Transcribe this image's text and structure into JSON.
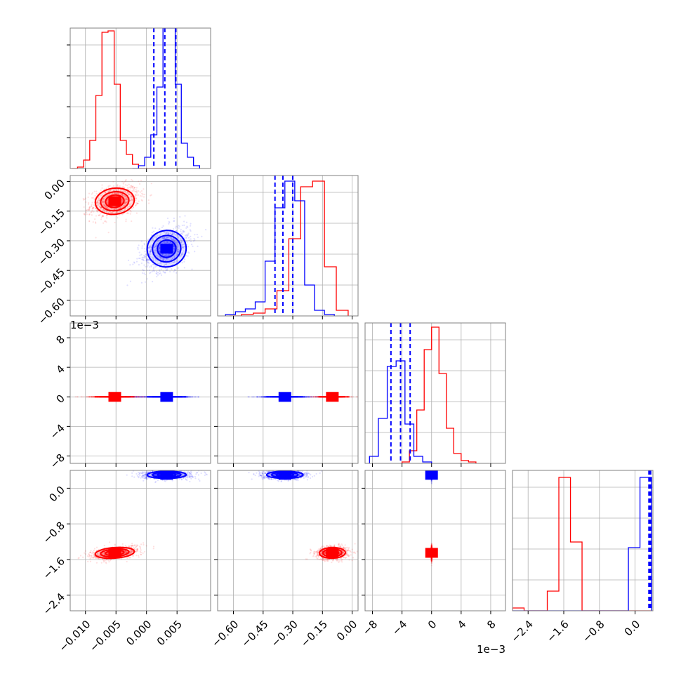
{
  "colors": {
    "red": "#ff0000",
    "blue": "#0000ff",
    "grid": "#b0b0b0",
    "axis": "#000000"
  },
  "chart_data": {
    "type": "corner-plot",
    "title": "",
    "variables": [
      {
        "range": [
          -0.0125,
          0.0105
        ],
        "ticks": [
          -0.01,
          -0.005,
          0.0,
          0.005
        ],
        "tick_labels": [
          "−0.010",
          "−0.005",
          "0.000",
          "0.005"
        ],
        "offset_label": ""
      },
      {
        "range": [
          -0.68,
          0.03
        ],
        "ticks": [
          0.0,
          -0.15,
          -0.3,
          -0.45,
          -0.6
        ],
        "tick_labels": [
          "0.00",
          "−0.15",
          "−0.30",
          "−0.45",
          "−0.60"
        ],
        "offset_label": ""
      },
      {
        "range": [
          -9,
          10
        ],
        "ticks": [
          8,
          4,
          0,
          -4,
          -8
        ],
        "tick_labels": [
          "8",
          "4",
          "0",
          "−4",
          "−8"
        ],
        "offset_label": "1e−3"
      },
      {
        "range": [
          -2.75,
          0.4
        ],
        "ticks": [
          0.0,
          -0.8,
          -1.6,
          -2.4
        ],
        "tick_labels": [
          "0.0",
          "−0.8",
          "−1.6",
          "−2.4"
        ],
        "offset_label": ""
      }
    ],
    "x_offset_labels": [
      "",
      "",
      "1e−3",
      ""
    ],
    "y_offset_labels": [
      "",
      "1e−3",
      "",
      ""
    ],
    "series": [
      {
        "color": "red",
        "means": [
          -0.0052,
          -0.1,
          0.0031,
          -1.45
        ],
        "stds": [
          0.0016,
          0.033,
          0.0012,
          0.06
        ],
        "ellipse_corr": {
          "1_0": 0.3,
          "2_0": -0.35,
          "2_1": -0.1,
          "3_0": 0.45,
          "3_1": 0.1,
          "3_2": 0.05
        },
        "hist": [
          [
            0,
            0.01,
            0.06,
            0.2,
            0.52,
            0.97,
            0.98,
            0.6,
            0.2,
            0.1,
            0.03,
            0.0,
            0.0,
            0,
            0
          ],
          [
            0,
            0.01,
            0.02,
            0.05,
            0.18,
            0.55,
            0.92,
            0.96,
            0.35,
            0.04
          ],
          [
            0.01,
            0.09,
            0.38,
            0.81,
            0.97,
            0.64,
            0.25,
            0.07,
            0.02,
            0.01
          ],
          [
            0.02,
            0.0,
            0.0,
            0.14,
            0.95,
            0.49,
            0.0,
            0.0,
            0.0,
            0.0,
            0.0,
            0.0
          ]
        ],
        "hist_edges": [
          [
            -0.0123,
            -0.0113,
            -0.0103,
            -0.0093,
            -0.0083,
            -0.0073,
            -0.0063,
            -0.0053,
            -0.0043,
            -0.0033,
            -0.0023,
            -0.0013,
            -0.0003,
            0.0007,
            0.0017,
            0.0027
          ],
          [
            -0.62,
            -0.56,
            -0.5,
            -0.44,
            -0.38,
            -0.32,
            -0.26,
            -0.2,
            -0.14,
            -0.08,
            -0.02
          ],
          [
            -4.0,
            -3.0,
            -2.0,
            -1.0,
            0.0,
            1.0,
            2.0,
            3.0,
            4.0,
            5.0,
            6.0
          ],
          [
            -2.75,
            -2.49,
            -2.23,
            -1.97,
            -1.71,
            -1.45,
            -1.19,
            -0.93,
            -0.67,
            -0.41,
            -0.15,
            0.11,
            0.37
          ]
        ]
      },
      {
        "color": "blue",
        "means": [
          0.0033,
          -0.34,
          -0.0042,
          0.3
        ],
        "stds": [
          0.0016,
          0.046,
          0.0014,
          0.04
        ],
        "ellipse_corr": {
          "1_0": 0.4,
          "2_0": 0.0,
          "2_1": 0.05,
          "3_0": 0.05,
          "3_1": 0.0,
          "3_2": 0.0
        },
        "hist": [
          [
            0,
            0.02,
            0.08,
            0.24,
            0.58,
            1.0,
            1.0,
            0.6,
            0.18,
            0.08,
            0.02
          ],
          [
            0.01,
            0.03,
            0.05,
            0.1,
            0.39,
            0.77,
            0.96,
            0.82,
            0.22,
            0.04,
            0.01
          ],
          [
            0.05,
            0.32,
            0.69,
            0.73,
            0.28,
            0.05,
            0.01
          ],
          [
            0.0,
            0.0,
            0.0,
            0.0,
            0.0,
            0.0,
            0.0,
            0.0,
            0.0,
            0.0,
            0.45,
            0.95
          ]
        ],
        "hist_edges": [
          [
            -0.0023,
            -0.0013,
            -0.0003,
            0.0007,
            0.0017,
            0.0027,
            0.0037,
            0.0047,
            0.0057,
            0.0067,
            0.0077,
            0.0087
          ],
          [
            -0.64,
            -0.59,
            -0.54,
            -0.49,
            -0.44,
            -0.39,
            -0.34,
            -0.29,
            -0.24,
            -0.19,
            -0.14,
            -0.09
          ],
          [
            -8.4,
            -7.2,
            -6.0,
            -4.8,
            -3.6,
            -2.4,
            -1.2,
            0.0
          ],
          [
            -2.75,
            -2.49,
            -2.23,
            -1.97,
            -1.71,
            -1.45,
            -1.19,
            -0.93,
            -0.67,
            -0.41,
            -0.15,
            0.11,
            0.37
          ]
        ],
        "quantiles": [
          [
            0.0012,
            0.003,
            0.0048
          ],
          [
            -0.39,
            -0.35,
            -0.3
          ],
          [
            -5.5,
            -4.2,
            -2.9
          ],
          [
            0.31,
            0.33,
            0.35
          ]
        ]
      }
    ]
  }
}
